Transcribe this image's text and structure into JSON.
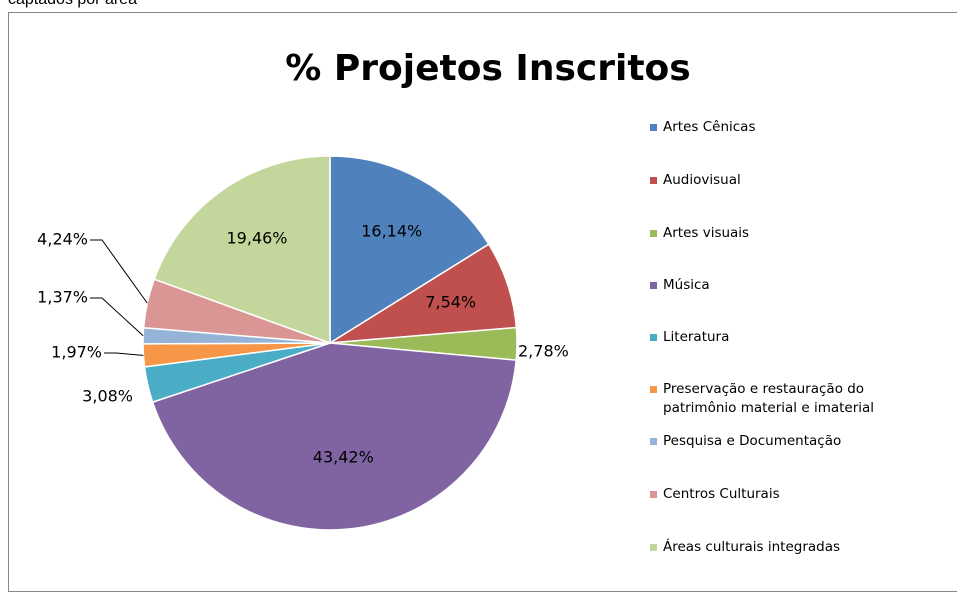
{
  "caption": "captados por área",
  "chart_data": {
    "type": "pie",
    "title": "% Projetos Inscritos",
    "categories": [
      "Artes Cênicas",
      "Audiovisual",
      "Artes visuais",
      "Música",
      "Literatura",
      "Preservação e restauração do patrimônio material e imaterial",
      "Pesquisa e Documentação",
      "Centros Culturais",
      "Áreas culturais integradas"
    ],
    "values": [
      16.14,
      7.54,
      2.78,
      43.42,
      3.08,
      1.97,
      1.37,
      4.24,
      19.46
    ],
    "value_labels": [
      "16,14%",
      "7,54%",
      "2,78%",
      "43,42%",
      "3,08%",
      "1,97%",
      "1,37%",
      "4,24%",
      "19,46%"
    ],
    "colors": [
      "#4f81bd",
      "#c0504d",
      "#9bbb59",
      "#8064a2",
      "#4bacc6",
      "#f79646",
      "#95b3d7",
      "#d99694",
      "#c3d69b"
    ],
    "legend": "right"
  }
}
